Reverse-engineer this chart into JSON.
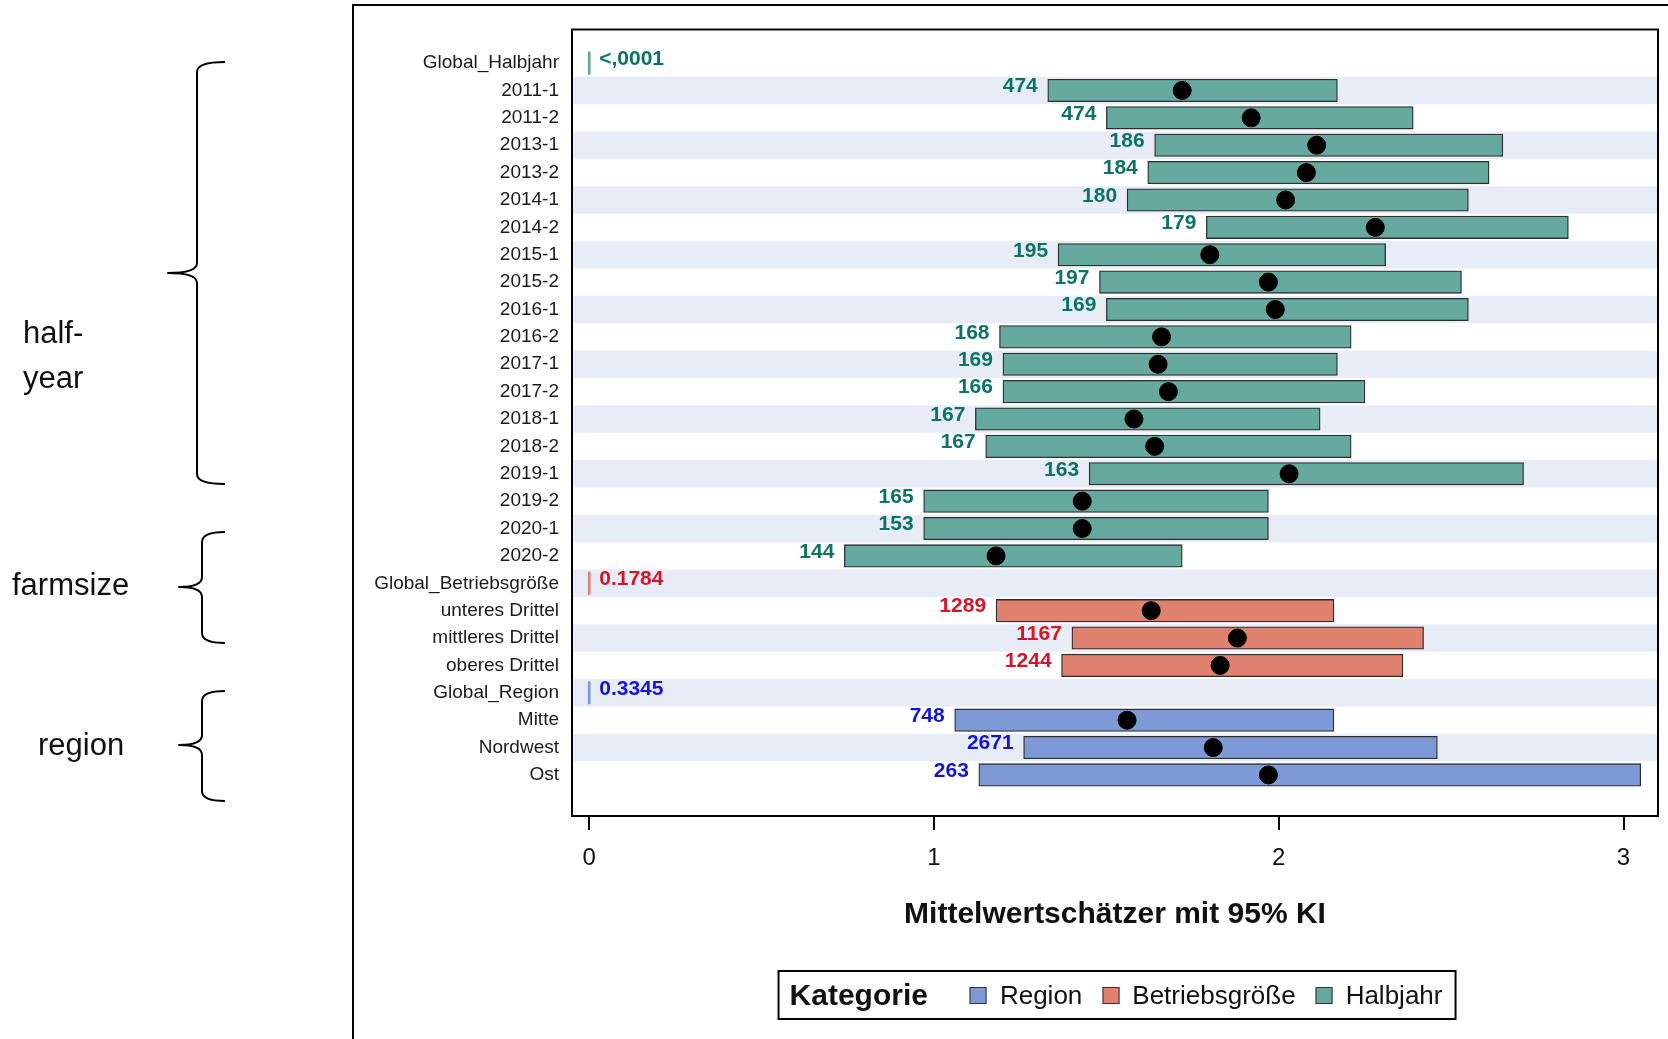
{
  "chart_data": {
    "type": "bar",
    "orientation": "horizontal",
    "xlabel": "Mittelwertschätzer mit 95% KI",
    "legend_title": "Kategorie",
    "legend": "bottom",
    "marker": "circle",
    "categories": [
      "Global_Halbjahr",
      "2011-1",
      "2011-2",
      "2013-1",
      "2013-2",
      "2014-1",
      "2014-2",
      "2015-1",
      "2015-2",
      "2016-1",
      "2016-2",
      "2017-1",
      "2017-2",
      "2018-1",
      "2018-2",
      "2019-1",
      "2019-2",
      "2020-1",
      "2020-2",
      "Global_Betriebsgröße",
      "unteres Drittel",
      "mittleres Drittel",
      "oberes Drittel",
      "Global_Region",
      "Mitte",
      "Nordwest",
      "Ost"
    ],
    "xlim": [
      -0.05,
      3.1
    ],
    "xticks": [
      0,
      1,
      2,
      3
    ],
    "series": [
      {
        "name": "Region",
        "color": "#7e9ad6",
        "base": [
          null,
          null,
          null,
          null,
          null,
          null,
          null,
          null,
          null,
          null,
          null,
          null,
          null,
          null,
          null,
          null,
          null,
          null,
          null,
          null,
          null,
          null,
          null,
          0,
          1.06,
          1.26,
          1.13
        ],
        "values": [
          null,
          null,
          null,
          null,
          null,
          null,
          null,
          null,
          null,
          null,
          null,
          null,
          null,
          null,
          null,
          null,
          null,
          null,
          null,
          null,
          null,
          null,
          null,
          0,
          1.1,
          1.2,
          1.92
        ]
      },
      {
        "name": "Betriebsgröße",
        "color": "#e0806f",
        "base": [
          null,
          null,
          null,
          null,
          null,
          null,
          null,
          null,
          null,
          null,
          null,
          null,
          null,
          null,
          null,
          null,
          null,
          null,
          null,
          0,
          1.18,
          1.4,
          1.37,
          null,
          null,
          null,
          null
        ],
        "values": [
          null,
          null,
          null,
          null,
          null,
          null,
          null,
          null,
          null,
          null,
          null,
          null,
          null,
          null,
          null,
          null,
          null,
          null,
          null,
          0,
          0.98,
          1.02,
          0.99,
          null,
          null,
          null,
          null
        ]
      },
      {
        "name": "Halbjahr",
        "color": "#66a99f",
        "base": [
          0,
          1.33,
          1.5,
          1.64,
          1.62,
          1.56,
          1.79,
          1.36,
          1.48,
          1.5,
          1.19,
          1.2,
          1.2,
          1.12,
          1.15,
          1.45,
          0.97,
          0.97,
          0.74,
          null,
          null,
          null,
          null,
          null,
          null,
          null,
          null
        ],
        "values": [
          0,
          0.84,
          0.89,
          1.01,
          0.99,
          0.99,
          1.05,
          0.95,
          1.05,
          1.05,
          1.02,
          0.97,
          1.05,
          1.0,
          1.06,
          1.26,
          1.0,
          1.0,
          0.98,
          null,
          null,
          null,
          null,
          null,
          null,
          null,
          null
        ]
      },
      {
        "type": "scatter",
        "color": "#000000",
        "x": [
          "2011-1",
          "2011-2",
          "2013-1",
          "2013-2",
          "2014-1",
          "2014-2",
          "2015-1",
          "2015-2",
          "2016-1",
          "2016-2",
          "2017-1",
          "2017-2",
          "2018-1",
          "2018-2",
          "2019-1",
          "2019-2",
          "2020-1",
          "2020-2",
          "unteres Drittel",
          "mittleres Drittel",
          "oberes Drittel",
          "Mitte",
          "Nordwest",
          "Ost"
        ],
        "values": [
          1.72,
          1.92,
          2.11,
          2.08,
          2.02,
          2.28,
          1.8,
          1.97,
          1.99,
          1.66,
          1.65,
          1.68,
          1.58,
          1.64,
          2.03,
          1.43,
          1.43,
          1.18,
          1.63,
          1.88,
          1.83,
          1.56,
          1.81,
          1.97
        ]
      }
    ],
    "bands": [
      {
        "axis": "y",
        "from": "2011-1",
        "to": "2011-1",
        "color": "#e8ecf6"
      },
      {
        "axis": "y",
        "from": "2013-1",
        "to": "2013-1",
        "color": "#e8ecf6"
      },
      {
        "axis": "y",
        "from": "2014-1",
        "to": "2014-1",
        "color": "#e8ecf6"
      },
      {
        "axis": "y",
        "from": "2015-1",
        "to": "2015-1",
        "color": "#e8ecf6"
      },
      {
        "axis": "y",
        "from": "2016-1",
        "to": "2016-1",
        "color": "#e8ecf6"
      },
      {
        "axis": "y",
        "from": "2017-1",
        "to": "2017-1",
        "color": "#e8ecf6"
      },
      {
        "axis": "y",
        "from": "2018-1",
        "to": "2018-1",
        "color": "#e8ecf6"
      },
      {
        "axis": "y",
        "from": "2019-1",
        "to": "2019-1",
        "color": "#e8ecf6"
      },
      {
        "axis": "y",
        "from": "2020-1",
        "to": "2020-1",
        "color": "#e8ecf6"
      },
      {
        "axis": "y",
        "from": "Global_Betriebsgröße",
        "to": "Global_Betriebsgröße",
        "color": "#e8ecf6"
      },
      {
        "axis": "y",
        "from": "mittleres Drittel",
        "to": "mittleres Drittel",
        "color": "#e8ecf6"
      },
      {
        "axis": "y",
        "from": "Global_Region",
        "to": "Global_Region",
        "color": "#e8ecf6"
      },
      {
        "axis": "y",
        "from": "Nordwest",
        "to": "Nordwest",
        "color": "#e8ecf6"
      }
    ],
    "annotations": [
      "half-year",
      "farmsize",
      "region",
      {
        "text": "<,0001",
        "x": 0,
        "y": "Global_Halbjahr"
      },
      {
        "text": "474",
        "x": 1.33,
        "y": "2011-1"
      },
      {
        "text": "474",
        "x": 1.5,
        "y": "2011-2"
      },
      {
        "text": "186",
        "x": 1.64,
        "y": "2013-1"
      },
      {
        "text": "184",
        "x": 1.62,
        "y": "2013-2"
      },
      {
        "text": "180",
        "x": 1.56,
        "y": "2014-1"
      },
      {
        "text": "179",
        "x": 1.79,
        "y": "2014-2"
      },
      {
        "text": "195",
        "x": 1.36,
        "y": "2015-1"
      },
      {
        "text": "197",
        "x": 1.48,
        "y": "2015-2"
      },
      {
        "text": "169",
        "x": 1.5,
        "y": "2016-1"
      },
      {
        "text": "168",
        "x": 1.19,
        "y": "2016-2"
      },
      {
        "text": "169",
        "x": 1.2,
        "y": "2017-1"
      },
      {
        "text": "166",
        "x": 1.2,
        "y": "2017-2"
      },
      {
        "text": "167",
        "x": 1.12,
        "y": "2018-1"
      },
      {
        "text": "167",
        "x": 1.15,
        "y": "2018-2"
      },
      {
        "text": "163",
        "x": 1.45,
        "y": "2019-1"
      },
      {
        "text": "165",
        "x": 0.97,
        "y": "2019-2"
      },
      {
        "text": "153",
        "x": 0.97,
        "y": "2020-1"
      },
      {
        "text": "144",
        "x": 0.74,
        "y": "2020-2"
      },
      {
        "text": "0.1784",
        "x": 0,
        "y": "Global_Betriebsgröße"
      },
      {
        "text": "1289",
        "x": 1.18,
        "y": "unteres Drittel"
      },
      {
        "text": "1167",
        "x": 1.4,
        "y": "mittleres Drittel"
      },
      {
        "text": "1244",
        "x": 1.37,
        "y": "oberes Drittel"
      },
      {
        "text": "0.3345",
        "x": 0,
        "y": "Global_Region"
      },
      {
        "text": "748",
        "x": 1.06,
        "y": "Mitte"
      },
      {
        "text": "2671",
        "x": 1.26,
        "y": "Nordwest"
      },
      {
        "text": "263",
        "x": 1.13,
        "y": "Ost"
      }
    ]
  }
}
